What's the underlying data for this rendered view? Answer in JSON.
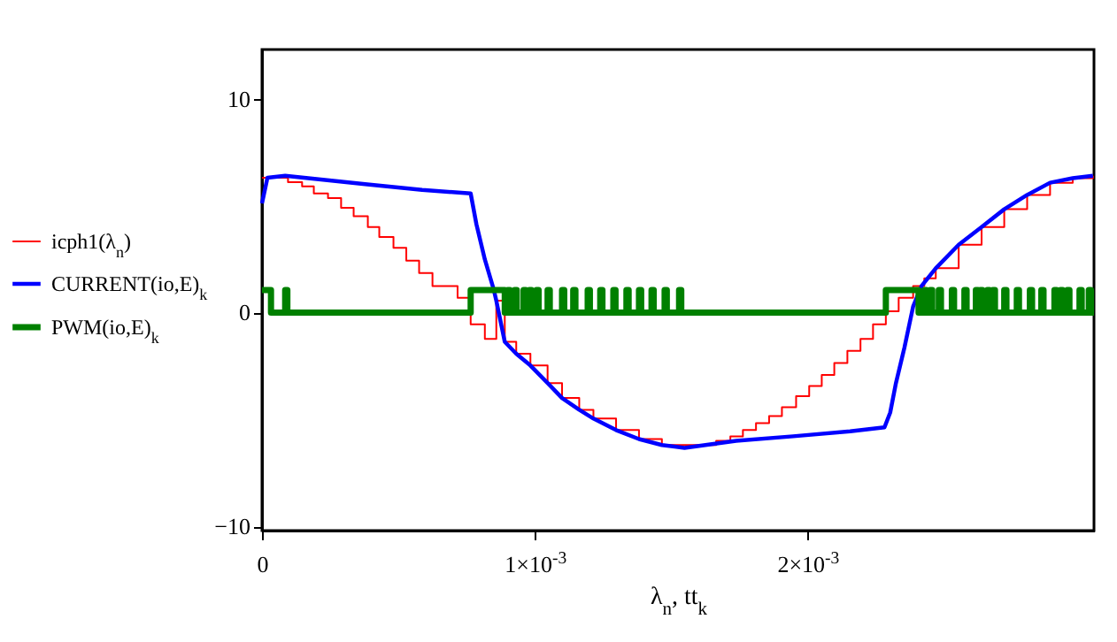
{
  "chart_data": {
    "type": "line",
    "xlabel": "λ$_{n}$, tt$_{k}$",
    "xlim": [
      0,
      0.00305
    ],
    "xticks": [
      0,
      {
        "value": 0.001,
        "label": "1×10$^{-3}$"
      },
      {
        "value": 0.002,
        "label": "2×10$^{-3}$"
      }
    ],
    "ylim": [
      -10.2,
      12.3
    ],
    "yticks": [
      -10,
      0,
      10
    ],
    "grid": false,
    "legend": "left",
    "marker": "none",
    "series": [
      {
        "name": "icph1(λ$_{n}$)",
        "type": "step",
        "color": "#ff0000",
        "x": [
          0,
          9.54e-05,
          0.000147,
          0.00019,
          0.000242,
          0.00029,
          0.000336,
          0.000388,
          0.00043,
          0.000482,
          0.000529,
          0.000576,
          0.000625,
          0.000717,
          0.000765,
          0.000817,
          0.000859,
          0.00089,
          0.000932,
          0.000984,
          0.001047,
          0.0011,
          0.001163,
          0.001215,
          0.001298,
          0.001382,
          0.001466,
          0.001549,
          0.001665,
          0.001717,
          0.001763,
          0.001811,
          0.001859,
          0.001906,
          0.001958,
          0.002006,
          0.002052,
          0.002098,
          0.002146,
          0.002194,
          0.00224,
          0.002287,
          0.002334,
          0.002387,
          0.002428,
          0.00247,
          0.002554,
          0.002638,
          0.002721,
          0.002805,
          0.002889,
          0.002972,
          0.003046
        ],
        "values": [
          6.3,
          6.1,
          5.9,
          5.57,
          5.35,
          4.9,
          4.5,
          4.0,
          3.53,
          3.03,
          2.43,
          1.85,
          1.24,
          0.69,
          -0.55,
          -1.24,
          0.55,
          -1.37,
          -1.93,
          -2.48,
          -3.3,
          -4.0,
          -4.55,
          -4.96,
          -5.5,
          -5.92,
          -6.2,
          -6.2,
          -6.0,
          -5.79,
          -5.5,
          -5.17,
          -4.84,
          -4.43,
          -3.91,
          -3.44,
          -2.92,
          -2.36,
          -1.79,
          -1.24,
          -0.55,
          0.06,
          0.69,
          1.24,
          1.6,
          2.07,
          3.17,
          4.0,
          4.83,
          5.5,
          6.07,
          6.28,
          6.4
        ]
      },
      {
        "name": "CURRENT(io,E)$_{k}$",
        "type": "line",
        "color": "#0000ff",
        "x": [
          0,
          2e-05,
          8.5e-05,
          0.000378,
          0.000587,
          0.000765,
          0.000786,
          0.000817,
          0.000849,
          0.000859,
          0.00089,
          0.000932,
          0.000984,
          0.001047,
          0.0011,
          0.001163,
          0.001215,
          0.001298,
          0.001382,
          0.001466,
          0.001549,
          0.001738,
          0.001947,
          0.002156,
          0.002282,
          0.002303,
          0.002324,
          0.002355,
          0.002387,
          0.002418,
          0.00247,
          0.002554,
          0.002638,
          0.002721,
          0.002805,
          0.002889,
          0.002972,
          0.003046
        ],
        "values": [
          5.1,
          6.3,
          6.4,
          6.0,
          5.73,
          5.57,
          4.13,
          2.48,
          1.1,
          0.55,
          -1.37,
          -1.93,
          -2.48,
          -3.3,
          -4.0,
          -4.55,
          -4.96,
          -5.5,
          -5.92,
          -6.2,
          -6.33,
          -6.0,
          -5.79,
          -5.56,
          -5.37,
          -4.68,
          -3.3,
          -1.65,
          0.28,
          1.24,
          2.07,
          3.17,
          4.0,
          4.83,
          5.5,
          6.07,
          6.28,
          6.4
        ]
      },
      {
        "name": "PWM(io,E)$_{k}$",
        "type": "step",
        "color": "#008000",
        "x": [
          0,
          3.3e-05,
          8.5e-05,
          9.3e-05,
          0.000765,
          0.00089,
          0.000901,
          0.000909,
          0.000926,
          0.000934,
          0.000959,
          0.000967,
          0.00098,
          0.000988,
          0.001006,
          0.001014,
          0.001047,
          0.001055,
          0.0011,
          0.001108,
          0.001141,
          0.001149,
          0.001194,
          0.001202,
          0.00124,
          0.001248,
          0.001288,
          0.001296,
          0.001336,
          0.001344,
          0.001382,
          0.00139,
          0.001428,
          0.001436,
          0.001476,
          0.001484,
          0.001529,
          0.001537,
          0.002287,
          0.002407,
          0.002428,
          0.002436,
          0.002449,
          0.002457,
          0.002481,
          0.002489,
          0.002529,
          0.002537,
          0.002575,
          0.002583,
          0.002617,
          0.002625,
          0.002633,
          0.002641,
          0.002659,
          0.002667,
          0.002679,
          0.002687,
          0.002721,
          0.002729,
          0.002767,
          0.002775,
          0.002815,
          0.002823,
          0.002857,
          0.002865,
          0.002905,
          0.002913,
          0.002927,
          0.002935,
          0.002952,
          0.00296,
          0.002997,
          0.003005,
          0.003031,
          0.003039,
          0.00305
        ],
        "values": [
          1.05,
          0,
          1.05,
          0,
          1.05,
          0,
          1.05,
          0,
          1.05,
          0,
          1.05,
          0,
          1.05,
          0,
          1.05,
          0,
          1.05,
          0,
          1.05,
          0,
          1.05,
          0,
          1.05,
          0,
          1.05,
          0,
          1.05,
          0,
          1.05,
          0,
          1.05,
          0,
          1.05,
          0,
          1.05,
          0,
          1.05,
          0,
          1.05,
          0,
          1.05,
          0,
          1.05,
          0,
          1.05,
          0,
          1.05,
          0,
          1.05,
          0,
          1.05,
          0,
          1.05,
          0,
          1.05,
          0,
          1.05,
          0,
          1.05,
          0,
          1.05,
          0,
          1.05,
          0,
          1.05,
          0,
          1.05,
          0,
          1.05,
          0,
          1.05,
          0,
          1.05,
          0,
          1.05,
          0,
          0
        ]
      }
    ]
  }
}
